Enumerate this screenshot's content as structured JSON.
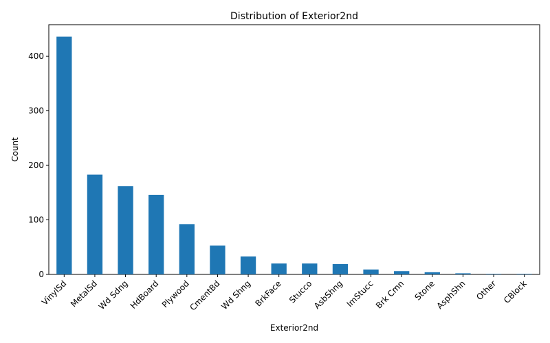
{
  "chart_data": {
    "type": "bar",
    "title": "Distribution of Exterior2nd",
    "xlabel": "Exterior2nd",
    "ylabel": "Count",
    "categories": [
      "VinylSd",
      "MetalSd",
      "Wd Sdng",
      "HdBoard",
      "Plywood",
      "CmentBd",
      "Wd Shng",
      "BrkFace",
      "Stucco",
      "AsbShng",
      "ImStucc",
      "Brk Cmn",
      "Stone",
      "AsphShn",
      "Other",
      "CBlock"
    ],
    "values": [
      436,
      183,
      162,
      146,
      92,
      53,
      33,
      20,
      20,
      19,
      9,
      6,
      4,
      2,
      1,
      1
    ],
    "ylim": [
      0,
      458
    ],
    "yticks": [
      0,
      100,
      200,
      300,
      400
    ],
    "grid": false,
    "legend": "none",
    "bar_color": "#1f77b4"
  }
}
